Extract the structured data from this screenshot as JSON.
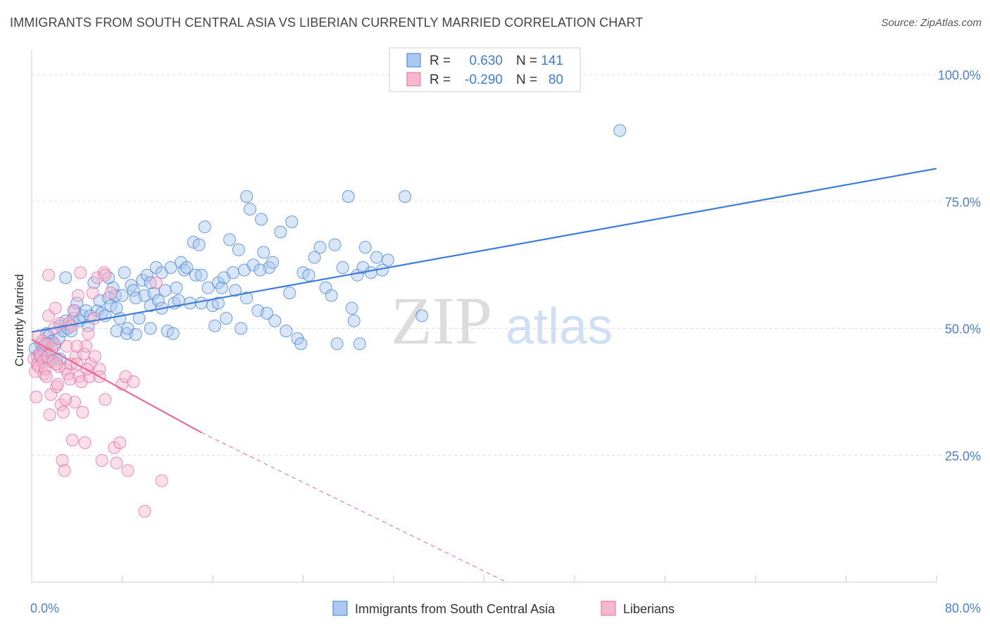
{
  "title": "IMMIGRANTS FROM SOUTH CENTRAL ASIA VS LIBERIAN CURRENTLY MARRIED CORRELATION CHART",
  "source": "Source: ZipAtlas.com",
  "watermark": {
    "zip": "ZIP",
    "atlas": "atlas"
  },
  "colors": {
    "blue": "#3c7dd9",
    "blue_fill": "#aac8f0",
    "pink": "#e8699a",
    "pink_fill": "#f5b8cd",
    "axis_label": "#4a80d0",
    "grid": "#dddddd"
  },
  "legend_top": {
    "rows": [
      {
        "r_label": "R =",
        "r_value": "0.630",
        "n_label": "N =",
        "n_value": "141"
      },
      {
        "r_label": "R =",
        "r_value": "-0.290",
        "n_label": "N =",
        "n_value": "80"
      }
    ]
  },
  "legend_bottom": {
    "series1": "Immigrants from South Central Asia",
    "series2": "Liberians"
  },
  "chart_data": {
    "type": "scatter",
    "title": "IMMIGRANTS FROM SOUTH CENTRAL ASIA VS LIBERIAN CURRENTLY MARRIED CORRELATION CHART",
    "xlabel": "",
    "ylabel": "Currently Married",
    "xlim": [
      0,
      80
    ],
    "ylim": [
      0,
      105
    ],
    "x_tick_labels": [
      "0.0%",
      "80.0%"
    ],
    "y_ticks": [
      25,
      50,
      75,
      100
    ],
    "y_tick_labels": [
      "25.0%",
      "50.0%",
      "75.0%",
      "100.0%"
    ],
    "grid": true,
    "legend": "top-center",
    "series": [
      {
        "name": "Immigrants from South Central Asia",
        "color": "#3c7dd9",
        "trend": {
          "x0": 0,
          "y0": 49.3,
          "x1": 80,
          "y1": 81.5
        },
        "points": [
          [
            0.3,
            46.0
          ],
          [
            0.5,
            44.5
          ],
          [
            0.7,
            45.0
          ],
          [
            0.8,
            47.0
          ],
          [
            1.0,
            44.0
          ],
          [
            1.2,
            45.5
          ],
          [
            1.3,
            49.0
          ],
          [
            1.5,
            48.5
          ],
          [
            1.6,
            43.5
          ],
          [
            1.8,
            47.5
          ],
          [
            2.0,
            46.5
          ],
          [
            2.2,
            44.0
          ],
          [
            2.4,
            48.0
          ],
          [
            2.5,
            50.5
          ],
          [
            2.8,
            49.5
          ],
          [
            3.0,
            51.5
          ],
          [
            3.2,
            50.0
          ],
          [
            3.5,
            49.5
          ],
          [
            3.7,
            52.0
          ],
          [
            3.8,
            53.5
          ],
          [
            4.0,
            55.0
          ],
          [
            4.2,
            51.5
          ],
          [
            4.5,
            52.5
          ],
          [
            4.8,
            53.5
          ],
          [
            5.0,
            50.5
          ],
          [
            5.2,
            52.5
          ],
          [
            5.5,
            59.0
          ],
          [
            5.8,
            53.5
          ],
          [
            6.0,
            55.5
          ],
          [
            6.2,
            53.0
          ],
          [
            6.5,
            52.5
          ],
          [
            6.8,
            56.0
          ],
          [
            7.0,
            54.5
          ],
          [
            7.2,
            58.0
          ],
          [
            7.4,
            56.5
          ],
          [
            7.5,
            49.5
          ],
          [
            7.8,
            52.0
          ],
          [
            8.0,
            56.5
          ],
          [
            8.2,
            61.0
          ],
          [
            8.4,
            49.0
          ],
          [
            8.5,
            50.0
          ],
          [
            8.8,
            58.5
          ],
          [
            9.0,
            57.5
          ],
          [
            9.2,
            56.0
          ],
          [
            9.5,
            52.0
          ],
          [
            9.8,
            59.5
          ],
          [
            10.0,
            56.5
          ],
          [
            10.2,
            60.5
          ],
          [
            10.5,
            54.5
          ],
          [
            10.8,
            57.0
          ],
          [
            11.0,
            62.0
          ],
          [
            11.2,
            55.5
          ],
          [
            11.5,
            61.0
          ],
          [
            11.8,
            57.5
          ],
          [
            12.0,
            49.5
          ],
          [
            12.3,
            62.0
          ],
          [
            12.6,
            55.0
          ],
          [
            12.8,
            58.0
          ],
          [
            13.0,
            55.5
          ],
          [
            13.2,
            63.0
          ],
          [
            13.5,
            61.5
          ],
          [
            13.7,
            62.0
          ],
          [
            14.0,
            55.0
          ],
          [
            14.3,
            67.0
          ],
          [
            14.5,
            60.5
          ],
          [
            14.8,
            66.5
          ],
          [
            15.0,
            55.0
          ],
          [
            15.3,
            70.0
          ],
          [
            15.6,
            58.0
          ],
          [
            16.0,
            54.5
          ],
          [
            16.2,
            50.5
          ],
          [
            16.5,
            59.0
          ],
          [
            16.8,
            58.0
          ],
          [
            17.0,
            60.0
          ],
          [
            17.2,
            52.0
          ],
          [
            17.5,
            67.5
          ],
          [
            17.8,
            61.0
          ],
          [
            18.0,
            57.5
          ],
          [
            18.3,
            65.5
          ],
          [
            18.5,
            50.0
          ],
          [
            18.8,
            61.5
          ],
          [
            19.0,
            56.0
          ],
          [
            19.3,
            73.5
          ],
          [
            19.6,
            62.5
          ],
          [
            20.0,
            53.5
          ],
          [
            20.3,
            71.5
          ],
          [
            20.5,
            65.0
          ],
          [
            20.8,
            53.0
          ],
          [
            21.0,
            62.0
          ],
          [
            21.3,
            63.0
          ],
          [
            21.5,
            51.5
          ],
          [
            22.0,
            69.0
          ],
          [
            22.5,
            49.5
          ],
          [
            22.8,
            57.0
          ],
          [
            23.0,
            71.0
          ],
          [
            23.5,
            48.0
          ],
          [
            23.8,
            47.0
          ],
          [
            24.0,
            61.0
          ],
          [
            24.5,
            60.5
          ],
          [
            25.0,
            64.0
          ],
          [
            25.5,
            66.0
          ],
          [
            26.0,
            58.0
          ],
          [
            26.5,
            56.5
          ],
          [
            26.8,
            66.5
          ],
          [
            27.0,
            47.0
          ],
          [
            27.5,
            62.0
          ],
          [
            28.0,
            76.0
          ],
          [
            28.3,
            54.0
          ],
          [
            28.5,
            51.5
          ],
          [
            28.8,
            60.5
          ],
          [
            29.0,
            47.0
          ],
          [
            29.3,
            62.0
          ],
          [
            29.5,
            66.0
          ],
          [
            30.0,
            61.0
          ],
          [
            30.5,
            64.0
          ],
          [
            31.0,
            61.5
          ],
          [
            31.5,
            63.5
          ],
          [
            33.0,
            76.0
          ],
          [
            34.5,
            52.5
          ],
          [
            52.0,
            89.0
          ],
          [
            19.0,
            76.0
          ],
          [
            12.5,
            49.0
          ],
          [
            9.2,
            48.8
          ],
          [
            10.5,
            59.0
          ],
          [
            10.5,
            50.0
          ],
          [
            16.5,
            55.0
          ],
          [
            11.5,
            54.0
          ],
          [
            15.0,
            60.5
          ],
          [
            7.5,
            54.0
          ],
          [
            6.8,
            60.0
          ],
          [
            3.0,
            60.0
          ],
          [
            20.2,
            61.5
          ],
          [
            1.0,
            46.0
          ],
          [
            1.5,
            47.0
          ],
          [
            2.5,
            44.0
          ]
        ]
      },
      {
        "name": "Liberians",
        "color": "#e8699a",
        "trend": {
          "x0": 0,
          "y0": 47.8,
          "x1": 15,
          "y1": 29.5,
          "dash_to_x": 42,
          "dash_to_y": 0
        },
        "points": [
          [
            0.2,
            44.0
          ],
          [
            0.3,
            41.5
          ],
          [
            0.4,
            36.5
          ],
          [
            0.5,
            43.0
          ],
          [
            0.6,
            42.5
          ],
          [
            0.7,
            45.0
          ],
          [
            0.8,
            44.5
          ],
          [
            0.9,
            47.5
          ],
          [
            1.0,
            43.5
          ],
          [
            1.1,
            41.0
          ],
          [
            1.2,
            42.0
          ],
          [
            1.3,
            40.5
          ],
          [
            1.4,
            44.5
          ],
          [
            1.5,
            52.5
          ],
          [
            1.6,
            33.0
          ],
          [
            1.7,
            37.0
          ],
          [
            1.8,
            46.0
          ],
          [
            1.9,
            43.5
          ],
          [
            2.0,
            47.0
          ],
          [
            2.1,
            54.0
          ],
          [
            2.2,
            38.5
          ],
          [
            2.3,
            39.0
          ],
          [
            2.4,
            42.5
          ],
          [
            2.5,
            51.0
          ],
          [
            2.6,
            35.0
          ],
          [
            2.7,
            24.0
          ],
          [
            2.8,
            33.5
          ],
          [
            2.9,
            22.0
          ],
          [
            3.0,
            42.0
          ],
          [
            3.1,
            46.5
          ],
          [
            3.2,
            41.0
          ],
          [
            3.3,
            51.0
          ],
          [
            3.4,
            40.0
          ],
          [
            3.5,
            43.0
          ],
          [
            3.6,
            28.0
          ],
          [
            3.7,
            53.5
          ],
          [
            3.8,
            35.5
          ],
          [
            3.9,
            44.5
          ],
          [
            4.0,
            43.0
          ],
          [
            4.1,
            56.5
          ],
          [
            4.2,
            40.5
          ],
          [
            4.3,
            61.0
          ],
          [
            4.4,
            39.5
          ],
          [
            4.5,
            33.5
          ],
          [
            4.6,
            45.0
          ],
          [
            4.7,
            27.5
          ],
          [
            4.8,
            46.5
          ],
          [
            5.0,
            49.0
          ],
          [
            5.1,
            40.5
          ],
          [
            5.2,
            43.0
          ],
          [
            5.4,
            57.0
          ],
          [
            5.6,
            44.5
          ],
          [
            5.8,
            60.0
          ],
          [
            6.0,
            42.0
          ],
          [
            6.2,
            24.0
          ],
          [
            6.4,
            61.0
          ],
          [
            6.5,
            60.5
          ],
          [
            7.0,
            57.0
          ],
          [
            7.3,
            26.5
          ],
          [
            7.5,
            23.5
          ],
          [
            7.8,
            27.5
          ],
          [
            8.0,
            39.0
          ],
          [
            8.3,
            40.5
          ],
          [
            8.5,
            22.0
          ],
          [
            9.0,
            39.5
          ],
          [
            1.5,
            60.5
          ],
          [
            2.2,
            43.0
          ],
          [
            3.0,
            36.0
          ],
          [
            4.0,
            46.5
          ],
          [
            5.5,
            52.0
          ],
          [
            6.0,
            40.5
          ],
          [
            10.0,
            14.0
          ],
          [
            11.5,
            20.0
          ],
          [
            11.0,
            59.0
          ],
          [
            3.5,
            50.5
          ],
          [
            2.0,
            50.0
          ],
          [
            1.2,
            47.0
          ],
          [
            0.6,
            48.5
          ],
          [
            4.9,
            42.0
          ],
          [
            6.5,
            36.0
          ]
        ]
      }
    ]
  }
}
